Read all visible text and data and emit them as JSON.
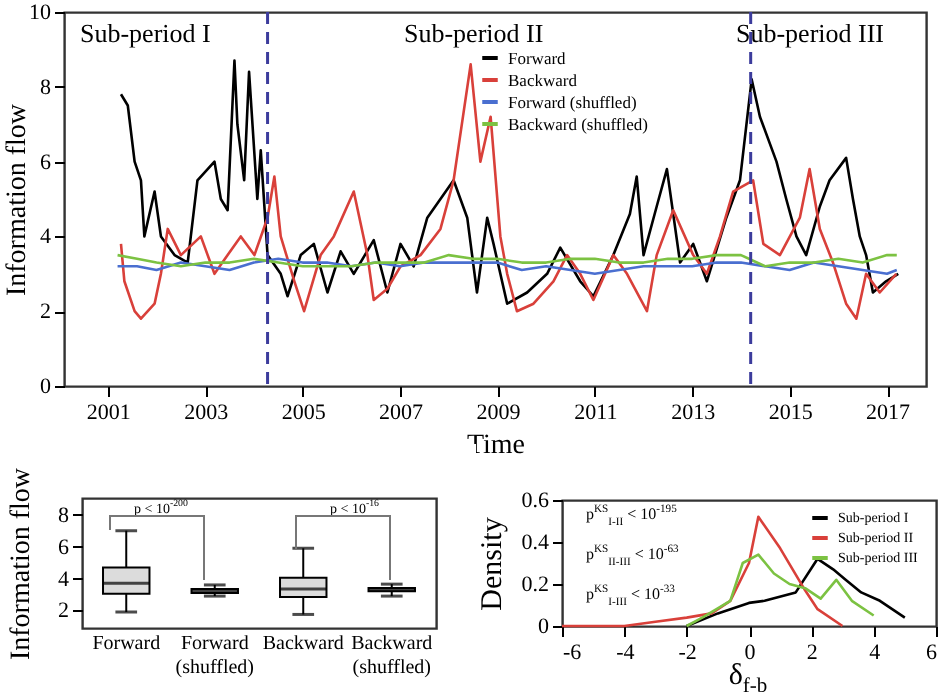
{
  "chart_data": [
    {
      "type": "line",
      "xlabel": "Time",
      "ylabel": "Information flow",
      "xlim": [
        2000.1,
        2017.8
      ],
      "ylim": [
        0,
        10
      ],
      "xticks": [
        2001,
        2003,
        2005,
        2007,
        2009,
        2011,
        2013,
        2015,
        2017
      ],
      "yticks": [
        0,
        2,
        4,
        6,
        8,
        10
      ],
      "grid": false,
      "legend": "top right",
      "line_style": "solid",
      "annotations": [
        "Sub-period I",
        "Sub-period II",
        "Sub-period III"
      ],
      "ref_lines": [
        {
          "axis": "x",
          "value": 2004.28,
          "color": "#3c3c9c",
          "line_style": "dashed"
        },
        {
          "axis": "x",
          "value": 2014.2,
          "color": "#3c3c9c",
          "line_style": "dashed"
        }
      ],
      "series": [
        {
          "name": "Forward",
          "color": "#000000",
          "x": [
            2001.27,
            2001.41,
            2001.55,
            2001.68,
            2001.75,
            2001.96,
            2002.09,
            2002.37,
            2002.64,
            2002.84,
            2003.19,
            2003.32,
            2003.46,
            2003.6,
            2003.66,
            2003.8,
            2003.9,
            2004.07,
            2004.14,
            2004.28,
            2004.55,
            2004.69,
            2004.96,
            2005.23,
            2005.51,
            2005.78,
            2006.05,
            2006.46,
            2006.74,
            2007.01,
            2007.28,
            2007.56,
            2008.1,
            2008.38,
            2008.58,
            2008.79,
            2008.92,
            2009.2,
            2009.61,
            2010.02,
            2010.29,
            2010.7,
            2010.97,
            2011.38,
            2011.72,
            2011.86,
            2012.0,
            2012.27,
            2012.48,
            2012.75,
            2013.02,
            2013.3,
            2013.7,
            2013.98,
            2014.22,
            2014.39,
            2014.73,
            2014.93,
            2015.14,
            2015.34,
            2015.62,
            2015.82,
            2016.16,
            2016.3,
            2016.44,
            2016.57,
            2016.71,
            2016.98,
            2017.23
          ],
          "values": [
            7.8,
            7.5,
            6.0,
            5.5,
            4.0,
            5.2,
            4.0,
            3.5,
            3.3,
            5.5,
            6.0,
            5.0,
            4.7,
            8.7,
            7.0,
            5.5,
            8.4,
            5.0,
            6.3,
            3.5,
            3.0,
            2.4,
            3.5,
            3.8,
            2.5,
            3.6,
            3.0,
            3.9,
            2.5,
            3.8,
            3.2,
            4.5,
            5.5,
            4.5,
            2.5,
            4.5,
            3.8,
            2.2,
            2.5,
            3.0,
            3.7,
            2.8,
            2.4,
            3.5,
            4.6,
            5.6,
            3.5,
            4.8,
            5.8,
            3.3,
            3.8,
            2.8,
            4.5,
            5.5,
            8.2,
            7.2,
            6.0,
            5.0,
            4.0,
            3.5,
            4.8,
            5.5,
            6.1,
            5.0,
            4.0,
            3.5,
            2.5,
            2.8,
            3.0
          ]
        },
        {
          "name": "Backward",
          "color": "#d9403a",
          "x": [
            2001.27,
            2001.34,
            2001.55,
            2001.68,
            2001.96,
            2002.09,
            2002.23,
            2002.5,
            2002.91,
            2003.19,
            2003.46,
            2003.73,
            2004.01,
            2004.28,
            2004.42,
            2004.55,
            2004.83,
            2005.03,
            2005.37,
            2005.64,
            2006.05,
            2006.33,
            2006.46,
            2006.74,
            2007.01,
            2007.42,
            2007.83,
            2008.1,
            2008.45,
            2008.65,
            2008.86,
            2009.06,
            2009.2,
            2009.4,
            2009.74,
            2010.15,
            2010.43,
            2010.7,
            2010.97,
            2011.38,
            2011.66,
            2012.07,
            2012.27,
            2012.61,
            2013.02,
            2013.3,
            2013.57,
            2013.84,
            2014.25,
            2014.46,
            2014.8,
            2015.21,
            2015.41,
            2015.62,
            2015.89,
            2016.16,
            2016.37,
            2016.57,
            2016.85,
            2017.19
          ],
          "values": [
            3.8,
            2.8,
            2.0,
            1.8,
            2.2,
            3.0,
            4.2,
            3.5,
            4.0,
            3.0,
            3.5,
            4.0,
            3.5,
            4.5,
            5.6,
            4.0,
            2.8,
            2.0,
            3.5,
            4.0,
            5.2,
            3.5,
            2.3,
            2.6,
            3.2,
            3.5,
            4.2,
            5.5,
            8.6,
            6.0,
            7.2,
            4.0,
            3.0,
            2.0,
            2.2,
            2.8,
            3.5,
            3.0,
            2.3,
            3.5,
            3.0,
            2.0,
            3.5,
            4.7,
            3.5,
            3.0,
            4.0,
            5.2,
            5.5,
            3.8,
            3.5,
            4.5,
            5.8,
            4.2,
            3.3,
            2.2,
            1.8,
            3.0,
            2.5,
            3.0
          ]
        },
        {
          "name": "Forward (shuffled)",
          "color": "#4a6fd0",
          "x": [
            2001.2,
            2001.6,
            2002.0,
            2002.5,
            2003.0,
            2003.5,
            2004.0,
            2004.5,
            2005.0,
            2005.5,
            2006.0,
            2006.5,
            2007.0,
            2007.5,
            2008.0,
            2008.5,
            2009.0,
            2009.5,
            2010.0,
            2010.5,
            2011.0,
            2011.5,
            2012.0,
            2012.5,
            2013.0,
            2013.5,
            2014.0,
            2014.5,
            2015.0,
            2015.5,
            2016.0,
            2016.5,
            2017.0,
            2017.2
          ],
          "values": [
            3.2,
            3.2,
            3.1,
            3.3,
            3.2,
            3.1,
            3.3,
            3.4,
            3.3,
            3.3,
            3.2,
            3.3,
            3.2,
            3.3,
            3.3,
            3.3,
            3.3,
            3.1,
            3.2,
            3.1,
            3.0,
            3.1,
            3.2,
            3.2,
            3.2,
            3.3,
            3.3,
            3.2,
            3.1,
            3.3,
            3.2,
            3.1,
            3.0,
            3.1
          ]
        },
        {
          "name": "Backward (shuffled)",
          "color": "#7cc242",
          "x": [
            2001.2,
            2001.6,
            2002.0,
            2002.5,
            2003.0,
            2003.5,
            2004.0,
            2004.5,
            2005.0,
            2005.5,
            2006.0,
            2006.5,
            2007.0,
            2007.5,
            2008.0,
            2008.5,
            2009.0,
            2009.5,
            2010.0,
            2010.5,
            2011.0,
            2011.5,
            2012.0,
            2012.5,
            2013.0,
            2013.5,
            2014.0,
            2014.5,
            2015.0,
            2015.5,
            2016.0,
            2016.5,
            2017.0,
            2017.2
          ],
          "values": [
            3.5,
            3.4,
            3.3,
            3.2,
            3.3,
            3.3,
            3.4,
            3.3,
            3.2,
            3.2,
            3.2,
            3.3,
            3.3,
            3.3,
            3.5,
            3.4,
            3.4,
            3.3,
            3.3,
            3.4,
            3.4,
            3.3,
            3.3,
            3.4,
            3.4,
            3.5,
            3.5,
            3.2,
            3.3,
            3.3,
            3.4,
            3.3,
            3.5,
            3.5
          ]
        }
      ]
    },
    {
      "type": "box",
      "ylabel": "Information flow",
      "categories": [
        "Forward",
        "Forward (shuffled)",
        "Backward",
        "Backward (shuffled)"
      ],
      "ylim": [
        0.9,
        9.05
      ],
      "yticks": [
        2,
        4,
        6,
        8
      ],
      "grid": false,
      "annotations": [
        "p < 10$^{-200}$",
        "p < 10$^{-16}$"
      ],
      "boxes": [
        {
          "low": 1.9,
          "q1": 3.05,
          "median": 3.7,
          "q3": 4.7,
          "high": 7.0
        },
        {
          "low": 2.9,
          "q1": 3.1,
          "median": 3.25,
          "q3": 3.35,
          "high": 3.6
        },
        {
          "low": 1.75,
          "q1": 2.85,
          "median": 3.35,
          "q3": 4.05,
          "high": 5.9
        },
        {
          "low": 2.9,
          "q1": 3.2,
          "median": 3.3,
          "q3": 3.4,
          "high": 3.65
        }
      ]
    },
    {
      "type": "line",
      "ylabel": "Density",
      "xlabel": "δ$_{f-b}$",
      "xlim": [
        -6,
        6
      ],
      "ylim": [
        0,
        0.6
      ],
      "xticks": [
        -6,
        -4,
        -2,
        0,
        2,
        4,
        6
      ],
      "yticks": [
        0,
        0.2,
        0.4,
        0.6
      ],
      "grid": false,
      "legend": "top right",
      "annotations": [
        "p$^{KS}$$_{I-II}$ < 10$^{-195}$",
        "p$^{KS}$$_{II-III}$ < 10$^{-63}$",
        "p$^{KS}$$_{I-III}$ < 10$^{-33}$"
      ],
      "series": [
        {
          "name": "Sub-period I",
          "color": "#000000",
          "x": [
            -2,
            -1,
            0,
            0.5,
            1.5,
            2.2,
            2.7,
            3.1,
            3.6,
            4.2,
            5
          ],
          "values": [
            0,
            0.06,
            0.11,
            0.12,
            0.16,
            0.32,
            0.27,
            0.22,
            0.16,
            0.12,
            0.04
          ]
        },
        {
          "name": "Sub-period II",
          "color": "#d9403a",
          "x": [
            -6,
            -4,
            -3,
            -2,
            -1.2,
            -0.6,
            0,
            0.3,
            1,
            1.8,
            2.2,
            3
          ],
          "values": [
            0,
            0,
            0.02,
            0.04,
            0.06,
            0.12,
            0.3,
            0.52,
            0.37,
            0.17,
            0.08,
            0
          ]
        },
        {
          "name": "Sub-period III",
          "color": "#7cc242",
          "x": [
            -2,
            -1.5,
            -0.6,
            -0.2,
            0.3,
            0.8,
            1.3,
            1.8,
            2.3,
            2.8,
            3.3,
            4
          ],
          "values": [
            0,
            0.04,
            0.12,
            0.3,
            0.34,
            0.25,
            0.2,
            0.18,
            0.13,
            0.22,
            0.12,
            0.05
          ]
        }
      ]
    }
  ]
}
